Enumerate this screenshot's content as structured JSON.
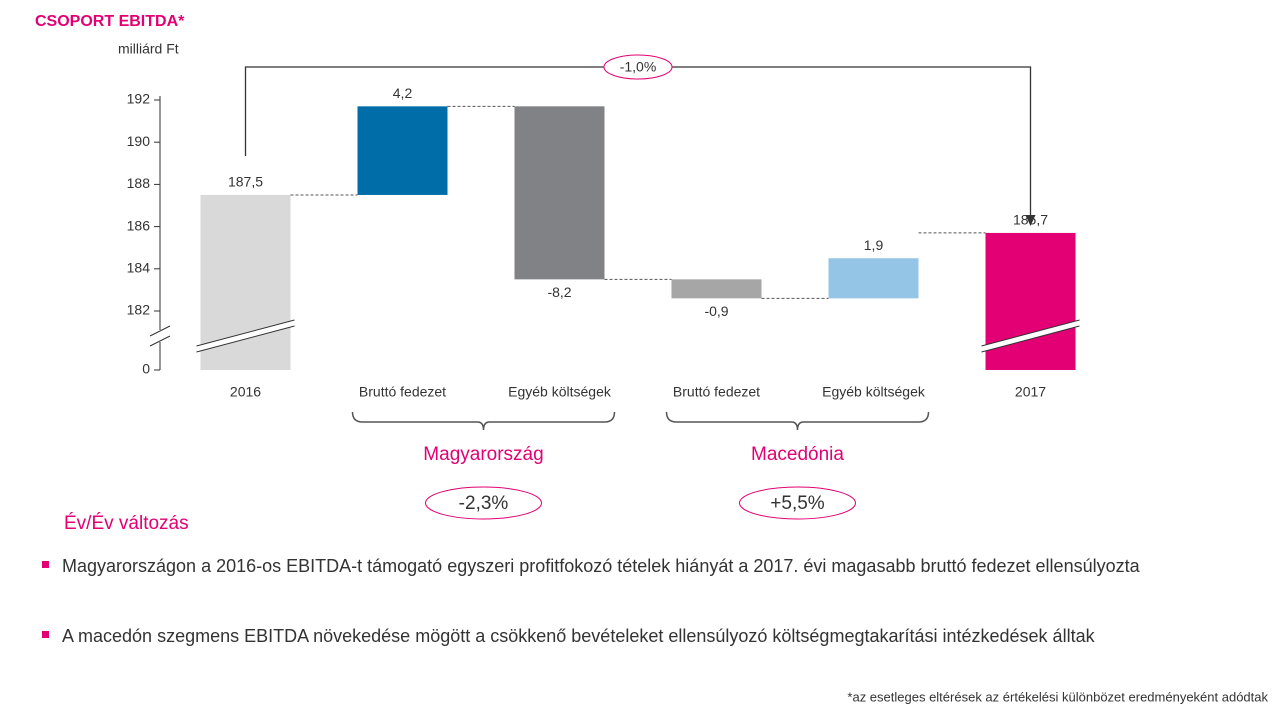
{
  "chart_data": {
    "type": "waterfall",
    "title": "CSOPORT EBITDA*",
    "y_label": "milliárd Ft",
    "categories": [
      "2016",
      "Bruttó fedezet",
      "Egyéb költségek",
      "Bruttó fedezet",
      "Egyéb költségek",
      "2017"
    ],
    "values": [
      187.5,
      4.2,
      -8.2,
      -0.9,
      1.9,
      185.7
    ],
    "value_labels": [
      "187,5",
      "4,2",
      "-8,2",
      "-0,9",
      "1,9",
      "185,7"
    ],
    "colors": [
      "#d9d9d9",
      "#006ca8",
      "#808285",
      "#a6a6a6",
      "#94c4e6",
      "#e20074"
    ],
    "ylim": [
      0,
      192
    ],
    "yticks": [
      0,
      182,
      184,
      186,
      188,
      190,
      192
    ],
    "axis_break": true,
    "groups": [
      {
        "label": "Magyarország",
        "change": "-2,3%"
      },
      {
        "label": "Macedónia",
        "change": "+5,5%"
      }
    ],
    "total_change": "-1,0%"
  },
  "section_title": "Év/Év változás",
  "bullets": [
    "Magyarországon a 2016-os EBITDA-t támogató egyszeri profitfokozó tételek hiányát a 2017. évi magasabb bruttó fedezet ellensúlyozta",
    "A macedón szegmens EBITDA növekedése mögött a csökkenő bevételeket ellensúlyozó költségmegtakarítási intézkedések álltak"
  ],
  "footnote": "*az esetleges eltérések az értékelési különbözet eredményeként adódtak"
}
